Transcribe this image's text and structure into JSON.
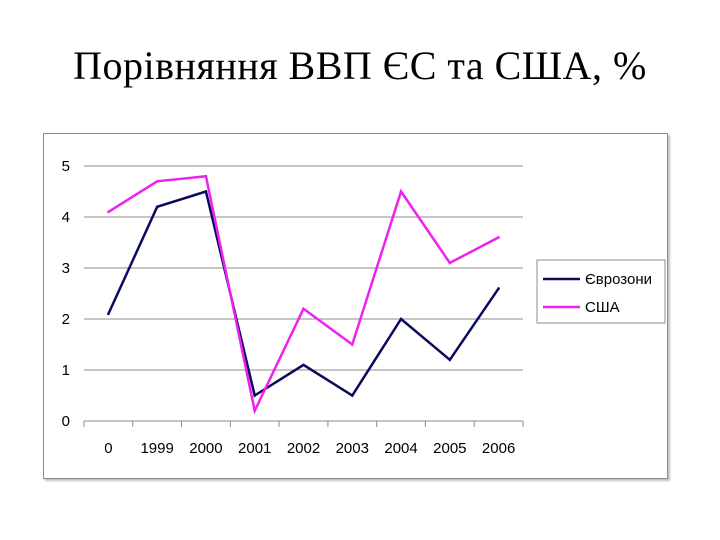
{
  "slide": {
    "title": "Порівняння ВВП ЄС та США, %"
  },
  "colors": {
    "eurozone": "#0b0b5e",
    "usa": "#ee22ee",
    "grid": "#8c8c8c"
  },
  "chart_data": {
    "type": "line",
    "categories": [
      "0",
      "1999",
      "2000",
      "2001",
      "2002",
      "2003",
      "2004",
      "2005",
      "2006"
    ],
    "ylim": [
      0,
      5
    ],
    "yticks": [
      "0",
      "1",
      "2",
      "3",
      "4",
      "5"
    ],
    "grid": true,
    "legend_position": "right",
    "series": [
      {
        "name": "Єврозони",
        "color": "#0b0b5e",
        "values": [
          2.1,
          4.2,
          4.5,
          0.5,
          1.1,
          0.5,
          2.0,
          1.2,
          2.6
        ]
      },
      {
        "name": "США",
        "color": "#ee22ee",
        "values": [
          4.1,
          4.7,
          4.8,
          0.2,
          2.2,
          1.5,
          4.5,
          3.1,
          3.6
        ]
      }
    ]
  }
}
